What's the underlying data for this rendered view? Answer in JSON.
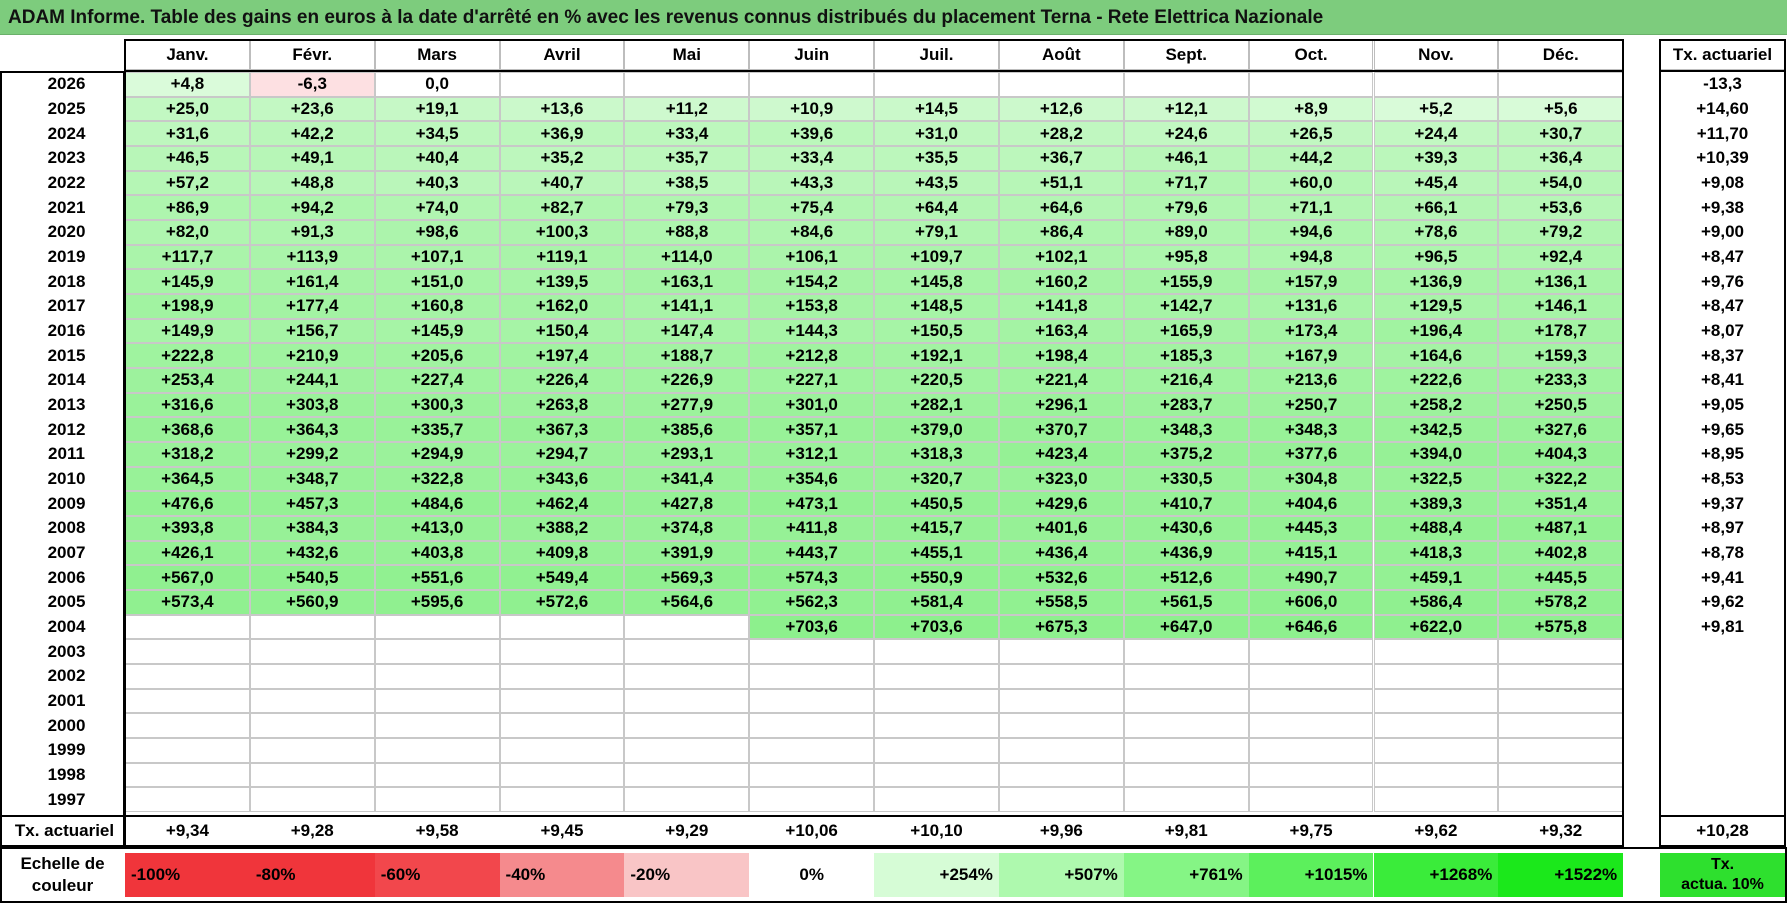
{
  "title": "ADAM Informe. Table des gains en euros à la date d'arrêté en % avec les revenus connus distribués du placement Terna - Rete Elettrica Nazionale",
  "months": [
    "Janv.",
    "Févr.",
    "Mars",
    "Avril",
    "Mai",
    "Juin",
    "Juil.",
    "Août",
    "Sept.",
    "Oct.",
    "Nov.",
    "Déc."
  ],
  "rate_header": "Tx. actuariel",
  "rows": [
    {
      "year": "2026",
      "values": [
        "+4,8",
        "-6,3",
        "0,0",
        "",
        "",
        "",
        "",
        "",
        "",
        "",
        "",
        ""
      ],
      "rate": "-13,3"
    },
    {
      "year": "2025",
      "values": [
        "+25,0",
        "+23,6",
        "+19,1",
        "+13,6",
        "+11,2",
        "+10,9",
        "+14,5",
        "+12,6",
        "+12,1",
        "+8,9",
        "+5,2",
        "+5,6"
      ],
      "rate": "+14,60"
    },
    {
      "year": "2024",
      "values": [
        "+31,6",
        "+42,2",
        "+34,5",
        "+36,9",
        "+33,4",
        "+39,6",
        "+31,0",
        "+28,2",
        "+24,6",
        "+26,5",
        "+24,4",
        "+30,7"
      ],
      "rate": "+11,70"
    },
    {
      "year": "2023",
      "values": [
        "+46,5",
        "+49,1",
        "+40,4",
        "+35,2",
        "+35,7",
        "+33,4",
        "+35,5",
        "+36,7",
        "+46,1",
        "+44,2",
        "+39,3",
        "+36,4"
      ],
      "rate": "+10,39"
    },
    {
      "year": "2022",
      "values": [
        "+57,2",
        "+48,8",
        "+40,3",
        "+40,7",
        "+38,5",
        "+43,3",
        "+43,5",
        "+51,1",
        "+71,7",
        "+60,0",
        "+45,4",
        "+54,0"
      ],
      "rate": "+9,08"
    },
    {
      "year": "2021",
      "values": [
        "+86,9",
        "+94,2",
        "+74,0",
        "+82,7",
        "+79,3",
        "+75,4",
        "+64,4",
        "+64,6",
        "+79,6",
        "+71,1",
        "+66,1",
        "+53,6"
      ],
      "rate": "+9,38"
    },
    {
      "year": "2020",
      "values": [
        "+82,0",
        "+91,3",
        "+98,6",
        "+100,3",
        "+88,8",
        "+84,6",
        "+79,1",
        "+86,4",
        "+89,0",
        "+94,6",
        "+78,6",
        "+79,2"
      ],
      "rate": "+9,00"
    },
    {
      "year": "2019",
      "values": [
        "+117,7",
        "+113,9",
        "+107,1",
        "+119,1",
        "+114,0",
        "+106,1",
        "+109,7",
        "+102,1",
        "+95,8",
        "+94,8",
        "+96,5",
        "+92,4"
      ],
      "rate": "+8,47"
    },
    {
      "year": "2018",
      "values": [
        "+145,9",
        "+161,4",
        "+151,0",
        "+139,5",
        "+163,1",
        "+154,2",
        "+145,8",
        "+160,2",
        "+155,9",
        "+157,9",
        "+136,9",
        "+136,1"
      ],
      "rate": "+9,76"
    },
    {
      "year": "2017",
      "values": [
        "+198,9",
        "+177,4",
        "+160,8",
        "+162,0",
        "+141,1",
        "+153,8",
        "+148,5",
        "+141,8",
        "+142,7",
        "+131,6",
        "+129,5",
        "+146,1"
      ],
      "rate": "+8,47"
    },
    {
      "year": "2016",
      "values": [
        "+149,9",
        "+156,7",
        "+145,9",
        "+150,4",
        "+147,4",
        "+144,3",
        "+150,5",
        "+163,4",
        "+165,9",
        "+173,4",
        "+196,4",
        "+178,7"
      ],
      "rate": "+8,07"
    },
    {
      "year": "2015",
      "values": [
        "+222,8",
        "+210,9",
        "+205,6",
        "+197,4",
        "+188,7",
        "+212,8",
        "+192,1",
        "+198,4",
        "+185,3",
        "+167,9",
        "+164,6",
        "+159,3"
      ],
      "rate": "+8,37"
    },
    {
      "year": "2014",
      "values": [
        "+253,4",
        "+244,1",
        "+227,4",
        "+226,4",
        "+226,9",
        "+227,1",
        "+220,5",
        "+221,4",
        "+216,4",
        "+213,6",
        "+222,6",
        "+233,3"
      ],
      "rate": "+8,41"
    },
    {
      "year": "2013",
      "values": [
        "+316,6",
        "+303,8",
        "+300,3",
        "+263,8",
        "+277,9",
        "+301,0",
        "+282,1",
        "+296,1",
        "+283,7",
        "+250,7",
        "+258,2",
        "+250,5"
      ],
      "rate": "+9,05"
    },
    {
      "year": "2012",
      "values": [
        "+368,6",
        "+364,3",
        "+335,7",
        "+367,3",
        "+385,6",
        "+357,1",
        "+379,0",
        "+370,7",
        "+348,3",
        "+348,3",
        "+342,5",
        "+327,6"
      ],
      "rate": "+9,65"
    },
    {
      "year": "2011",
      "values": [
        "+318,2",
        "+299,2",
        "+294,9",
        "+294,7",
        "+293,1",
        "+312,1",
        "+318,3",
        "+423,4",
        "+375,2",
        "+377,6",
        "+394,0",
        "+404,3"
      ],
      "rate": "+8,95"
    },
    {
      "year": "2010",
      "values": [
        "+364,5",
        "+348,7",
        "+322,8",
        "+343,6",
        "+341,4",
        "+354,6",
        "+320,7",
        "+323,0",
        "+330,5",
        "+304,8",
        "+322,5",
        "+322,2"
      ],
      "rate": "+8,53"
    },
    {
      "year": "2009",
      "values": [
        "+476,6",
        "+457,3",
        "+484,6",
        "+462,4",
        "+427,8",
        "+473,1",
        "+450,5",
        "+429,6",
        "+410,7",
        "+404,6",
        "+389,3",
        "+351,4"
      ],
      "rate": "+9,37"
    },
    {
      "year": "2008",
      "values": [
        "+393,8",
        "+384,3",
        "+413,0",
        "+388,2",
        "+374,8",
        "+411,8",
        "+415,7",
        "+401,6",
        "+430,6",
        "+445,3",
        "+488,4",
        "+487,1"
      ],
      "rate": "+8,97"
    },
    {
      "year": "2007",
      "values": [
        "+426,1",
        "+432,6",
        "+403,8",
        "+409,8",
        "+391,9",
        "+443,7",
        "+455,1",
        "+436,4",
        "+436,9",
        "+415,1",
        "+418,3",
        "+402,8"
      ],
      "rate": "+8,78"
    },
    {
      "year": "2006",
      "values": [
        "+567,0",
        "+540,5",
        "+551,6",
        "+549,4",
        "+569,3",
        "+574,3",
        "+550,9",
        "+532,6",
        "+512,6",
        "+490,7",
        "+459,1",
        "+445,5"
      ],
      "rate": "+9,41"
    },
    {
      "year": "2005",
      "values": [
        "+573,4",
        "+560,9",
        "+595,6",
        "+572,6",
        "+564,6",
        "+562,3",
        "+581,4",
        "+558,5",
        "+561,5",
        "+606,0",
        "+586,4",
        "+578,2"
      ],
      "rate": "+9,62"
    },
    {
      "year": "2004",
      "values": [
        "",
        "",
        "",
        "",
        "",
        "+703,6",
        "+703,6",
        "+675,3",
        "+647,0",
        "+646,6",
        "+622,0",
        "+575,8"
      ],
      "rate": "+9,81"
    },
    {
      "year": "2003",
      "values": [
        "",
        "",
        "",
        "",
        "",
        "",
        "",
        "",
        "",
        "",
        "",
        ""
      ],
      "rate": ""
    },
    {
      "year": "2002",
      "values": [
        "",
        "",
        "",
        "",
        "",
        "",
        "",
        "",
        "",
        "",
        "",
        ""
      ],
      "rate": ""
    },
    {
      "year": "2001",
      "values": [
        "",
        "",
        "",
        "",
        "",
        "",
        "",
        "",
        "",
        "",
        "",
        ""
      ],
      "rate": ""
    },
    {
      "year": "2000",
      "values": [
        "",
        "",
        "",
        "",
        "",
        "",
        "",
        "",
        "",
        "",
        "",
        ""
      ],
      "rate": ""
    },
    {
      "year": "1999",
      "values": [
        "",
        "",
        "",
        "",
        "",
        "",
        "",
        "",
        "",
        "",
        "",
        ""
      ],
      "rate": ""
    },
    {
      "year": "1998",
      "values": [
        "",
        "",
        "",
        "",
        "",
        "",
        "",
        "",
        "",
        "",
        "",
        ""
      ],
      "rate": ""
    },
    {
      "year": "1997",
      "values": [
        "",
        "",
        "",
        "",
        "",
        "",
        "",
        "",
        "",
        "",
        "",
        ""
      ],
      "rate": ""
    }
  ],
  "footer": {
    "label": "Tx. actuariel",
    "values": [
      "+9,34",
      "+9,28",
      "+9,58",
      "+9,45",
      "+9,29",
      "+10,06",
      "+10,10",
      "+9,96",
      "+9,81",
      "+9,75",
      "+9,62",
      "+9,32"
    ],
    "total": "+10,28"
  },
  "scale": {
    "label_line1": "Echelle de",
    "label_line2": "couleur",
    "items": [
      {
        "text": "-100%",
        "color": "#f0353b"
      },
      {
        "text": "-80%",
        "color": "#f0353b"
      },
      {
        "text": "-60%",
        "color": "#f2474c"
      },
      {
        "text": "-40%",
        "color": "#f58a8d"
      },
      {
        "text": "-20%",
        "color": "#f9c5c6"
      },
      {
        "text": "0%",
        "color": "#ffffff"
      },
      {
        "text": "+254%",
        "color": "#d6fcd6"
      },
      {
        "text": "+507%",
        "color": "#aef9ae"
      },
      {
        "text": "+761%",
        "color": "#85f585"
      },
      {
        "text": "+1015%",
        "color": "#5cf05c"
      },
      {
        "text": "+1268%",
        "color": "#3aec3a"
      },
      {
        "text": "+1522%",
        "color": "#1be81b"
      }
    ],
    "legend_line1": "Tx.",
    "legend_line2": "actua. 10%",
    "legend_color": "#2ee02e"
  },
  "colors": {
    "title_bg": "#7dcc7d",
    "negative_light": "#fde0e2",
    "positive_low": "#f6fff6",
    "positive_high": "#8df08d"
  }
}
